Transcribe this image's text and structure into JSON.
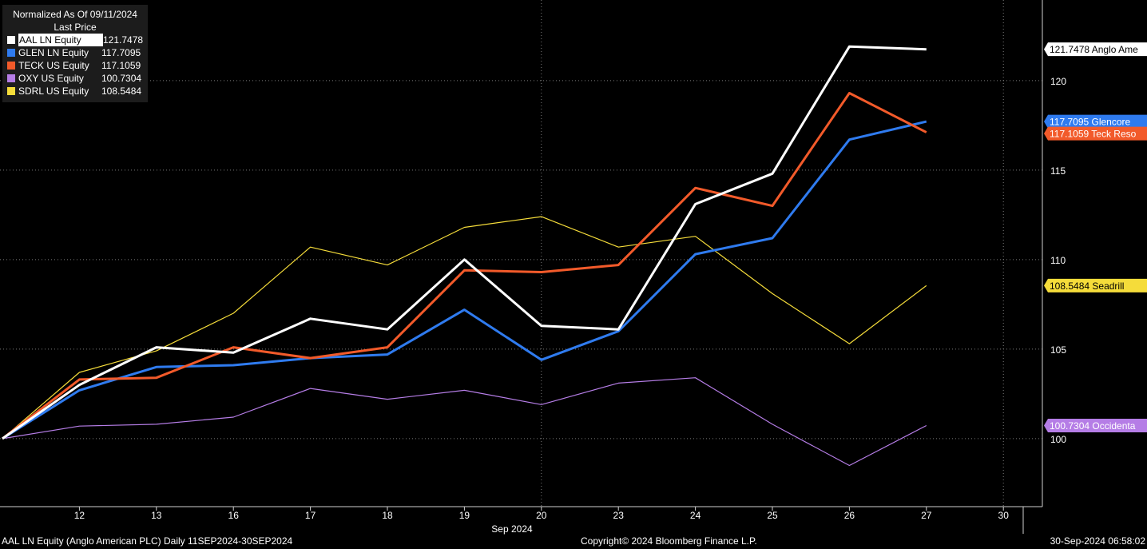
{
  "legend": {
    "header_line1": "Normalized As Of 09/11/2024",
    "header_line2": "Last Price",
    "items": [
      {
        "name": "AAL LN Equity",
        "value": "121.7478",
        "color": "#ffffff"
      },
      {
        "name": "GLEN LN Equity",
        "value": "117.7095",
        "color": "#2f7bef"
      },
      {
        "name": "TECK US Equity",
        "value": "117.1059",
        "color": "#f25a2a"
      },
      {
        "name": "OXY US Equity",
        "value": "100.7304",
        "color": "#b57de6"
      },
      {
        "name": "SDRL US Equity",
        "value": "108.5484",
        "color": "#f5dc3a"
      }
    ]
  },
  "footer": {
    "left": "AAL LN Equity (Anglo American PLC)  Daily 11SEP2024-30SEP2024",
    "center": "Copyright© 2024 Bloomberg Finance L.P.",
    "right": "30-Sep-2024 06:58:02"
  },
  "chart_data": {
    "type": "line",
    "x": [
      "11",
      "12",
      "13",
      "16",
      "17",
      "18",
      "19",
      "20",
      "23",
      "24",
      "25",
      "26",
      "27"
    ],
    "x_tick_labels": [
      "12",
      "13",
      "16",
      "17",
      "18",
      "19",
      "20",
      "23",
      "24",
      "25",
      "26",
      "27",
      "30"
    ],
    "x_month_label": "Sep 2024",
    "y_ticks": [
      "100",
      "105",
      "110",
      "115",
      "120"
    ],
    "ylim": [
      96.2,
      124.5
    ],
    "grid": true,
    "legend_position": "top-left",
    "series": [
      {
        "key": "sdrl",
        "color": "#f5dc3a",
        "width": 1.2,
        "values": [
          100,
          103.7,
          104.9,
          107.0,
          110.7,
          109.7,
          111.8,
          112.4,
          110.7,
          111.3,
          108.1,
          105.3,
          108.5484
        ],
        "tag": "108.5484 Seadrill"
      },
      {
        "key": "oxy",
        "color": "#b57de6",
        "width": 1.2,
        "values": [
          100,
          100.7,
          100.8,
          101.2,
          102.8,
          102.2,
          102.7,
          101.9,
          103.1,
          103.4,
          100.8,
          98.5,
          100.7304
        ],
        "tag": "100.7304 Occidenta"
      },
      {
        "key": "glen",
        "color": "#2f7bef",
        "width": 3,
        "values": [
          100,
          102.7,
          104.0,
          104.1,
          104.5,
          104.7,
          107.2,
          104.4,
          106.0,
          110.3,
          111.2,
          116.7,
          117.7095
        ],
        "tag": "117.7095 Glencore"
      },
      {
        "key": "teck",
        "color": "#f25a2a",
        "width": 3,
        "values": [
          100,
          103.3,
          103.4,
          105.1,
          104.5,
          105.1,
          109.4,
          109.3,
          109.7,
          114.0,
          113.0,
          119.3,
          117.1059
        ],
        "tag": "117.1059 Teck Reso"
      },
      {
        "key": "aal",
        "color": "#ffffff",
        "width": 3,
        "values": [
          100,
          103.0,
          105.1,
          104.8,
          106.7,
          106.1,
          110.0,
          106.3,
          106.1,
          113.1,
          114.8,
          121.9,
          121.7478
        ],
        "tag": "121.7478 Anglo Ame"
      }
    ]
  }
}
